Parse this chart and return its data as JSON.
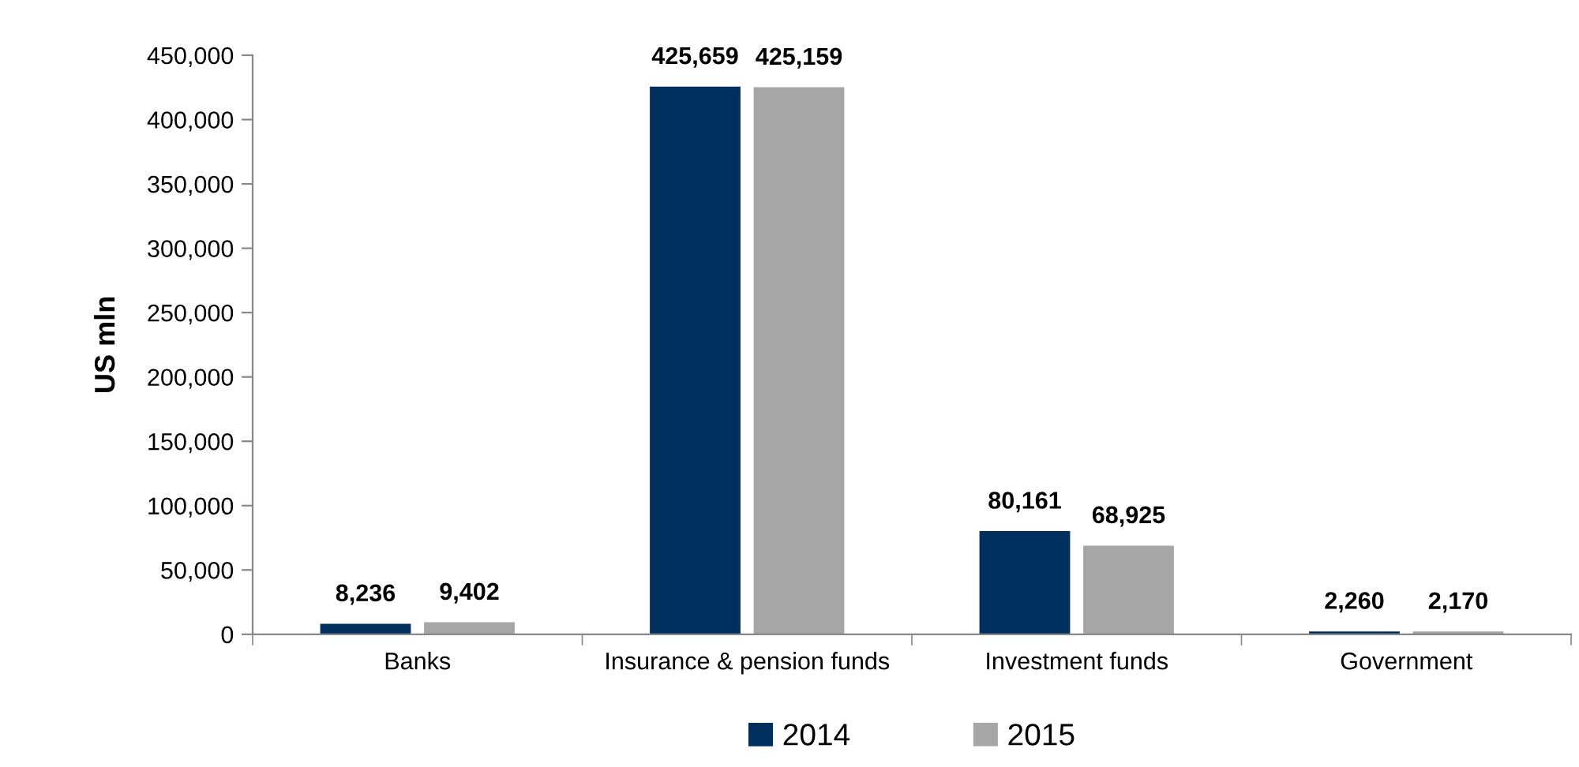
{
  "chart_data": {
    "type": "bar",
    "ylabel": "US mln",
    "categories": [
      "Banks",
      "Insurance & pension funds",
      "Investment funds",
      "Government"
    ],
    "series": [
      {
        "name": "2014",
        "color": "#00305e",
        "values": [
          8236,
          425659,
          80161,
          2260
        ],
        "value_labels": [
          "8,236",
          "425,659",
          "80,161",
          "2,260"
        ]
      },
      {
        "name": "2015",
        "color": "#a6a6a6",
        "values": [
          9402,
          425159,
          68925,
          2170
        ],
        "value_labels": [
          "9,402",
          "425,159",
          "68,925",
          "2,170"
        ]
      }
    ],
    "ylim": [
      0,
      450000
    ],
    "yticks": [
      {
        "value": 0,
        "label": "0"
      },
      {
        "value": 50000,
        "label": "50,000"
      },
      {
        "value": 100000,
        "label": "100,000"
      },
      {
        "value": 150000,
        "label": "150,000"
      },
      {
        "value": 200000,
        "label": "200,000"
      },
      {
        "value": 250000,
        "label": "250,000"
      },
      {
        "value": 300000,
        "label": "300,000"
      },
      {
        "value": 350000,
        "label": "350,000"
      },
      {
        "value": 400000,
        "label": "400,000"
      },
      {
        "value": 450000,
        "label": "450,000"
      }
    ],
    "grid": false,
    "legend": "bottom"
  }
}
